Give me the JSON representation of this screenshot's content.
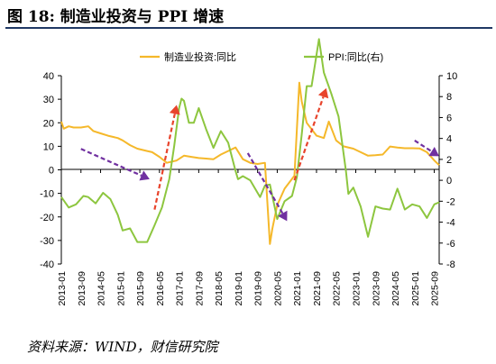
{
  "figure": {
    "title": "图 18:  制造业投资与 PPI 增速",
    "source": "资料来源：WIND，财信研究院"
  },
  "chart_data": {
    "type": "line",
    "title": "",
    "grid": false,
    "legend_position": "top",
    "y_left": {
      "min": -40,
      "max": 40,
      "step": 10,
      "ticks": [
        "40",
        "30",
        "20",
        "10",
        "0",
        "-10",
        "-20",
        "-30",
        "-40"
      ]
    },
    "y_right": {
      "min": -8,
      "max": 10,
      "step": 2,
      "ticks": [
        "10",
        "8",
        "6",
        "4",
        "2",
        "0",
        "-2",
        "-4",
        "-6",
        "-8"
      ]
    },
    "x_ticks": [
      "2013-01",
      "2013-09",
      "2014-05",
      "2015-01",
      "2015-09",
      "2016-05",
      "2017-01",
      "2017-09",
      "2018-05",
      "2019-01",
      "2019-09",
      "2020-05",
      "2021-01",
      "2021-09",
      "2022-05",
      "2023-01",
      "2023-09",
      "2024-05",
      "2025-01",
      "2025-09"
    ],
    "series": [
      {
        "name": "制造业投资:同比",
        "axis": "left",
        "color": "#f5b82a",
        "points": [
          [
            "2013-01",
            20.5
          ],
          [
            "2013-02",
            17.5
          ],
          [
            "2013-04",
            18.5
          ],
          [
            "2013-06",
            18.0
          ],
          [
            "2013-09",
            18.0
          ],
          [
            "2013-12",
            18.5
          ],
          [
            "2014-02",
            16.5
          ],
          [
            "2014-05",
            15.5
          ],
          [
            "2014-08",
            14.5
          ],
          [
            "2014-12",
            13.5
          ],
          [
            "2015-02",
            12.5
          ],
          [
            "2015-05",
            10.5
          ],
          [
            "2015-08",
            9.0
          ],
          [
            "2015-12",
            8.0
          ],
          [
            "2016-02",
            7.5
          ],
          [
            "2016-05",
            5.5
          ],
          [
            "2016-08",
            3.0
          ],
          [
            "2016-12",
            4.0
          ],
          [
            "2017-03",
            6.0
          ],
          [
            "2017-06",
            5.5
          ],
          [
            "2017-09",
            5.0
          ],
          [
            "2017-12",
            4.8
          ],
          [
            "2018-03",
            4.5
          ],
          [
            "2018-06",
            6.5
          ],
          [
            "2018-09",
            8.0
          ],
          [
            "2018-12",
            9.5
          ],
          [
            "2019-03",
            4.5
          ],
          [
            "2019-06",
            3.0
          ],
          [
            "2019-09",
            2.5
          ],
          [
            "2019-12",
            3.0
          ],
          [
            "2020-02",
            -31.5
          ],
          [
            "2020-03",
            -25.0
          ],
          [
            "2020-05",
            -15.0
          ],
          [
            "2020-08",
            -8.0
          ],
          [
            "2020-12",
            -2.5
          ],
          [
            "2021-02",
            37.0
          ],
          [
            "2021-03",
            29.0
          ],
          [
            "2021-05",
            20.0
          ],
          [
            "2021-09",
            14.5
          ],
          [
            "2021-12",
            13.5
          ],
          [
            "2022-02",
            20.5
          ],
          [
            "2022-05",
            12.5
          ],
          [
            "2022-08",
            10.0
          ],
          [
            "2022-12",
            9.0
          ],
          [
            "2023-03",
            7.5
          ],
          [
            "2023-06",
            6.0
          ],
          [
            "2023-09",
            6.2
          ],
          [
            "2023-12",
            6.5
          ],
          [
            "2024-03",
            9.9
          ],
          [
            "2024-06",
            9.5
          ],
          [
            "2024-09",
            9.2
          ],
          [
            "2024-12",
            9.2
          ],
          [
            "2025-03",
            9.1
          ],
          [
            "2025-06",
            7.5
          ],
          [
            "2025-09",
            4.0
          ],
          [
            "2025-11",
            2.0
          ]
        ]
      },
      {
        "name": "PPI:同比(右)",
        "axis": "right",
        "color": "#8dc63f",
        "points": [
          [
            "2013-01",
            -1.6
          ],
          [
            "2013-04",
            -2.6
          ],
          [
            "2013-07",
            -2.3
          ],
          [
            "2013-10",
            -1.5
          ],
          [
            "2013-12",
            -1.6
          ],
          [
            "2014-03",
            -2.2
          ],
          [
            "2014-06",
            -1.2
          ],
          [
            "2014-09",
            -1.8
          ],
          [
            "2014-12",
            -3.3
          ],
          [
            "2015-02",
            -4.8
          ],
          [
            "2015-05",
            -4.6
          ],
          [
            "2015-08",
            -5.9
          ],
          [
            "2015-12",
            -5.9
          ],
          [
            "2016-03",
            -4.3
          ],
          [
            "2016-06",
            -2.6
          ],
          [
            "2016-09",
            0.1
          ],
          [
            "2016-11",
            3.3
          ],
          [
            "2017-01",
            6.9
          ],
          [
            "2017-02",
            7.8
          ],
          [
            "2017-03",
            7.6
          ],
          [
            "2017-05",
            5.5
          ],
          [
            "2017-07",
            5.5
          ],
          [
            "2017-09",
            6.9
          ],
          [
            "2017-12",
            4.9
          ],
          [
            "2018-03",
            3.1
          ],
          [
            "2018-06",
            4.7
          ],
          [
            "2018-09",
            3.6
          ],
          [
            "2018-12",
            0.9
          ],
          [
            "2019-01",
            0.1
          ],
          [
            "2019-03",
            0.4
          ],
          [
            "2019-06",
            0.0
          ],
          [
            "2019-08",
            -0.8
          ],
          [
            "2019-10",
            -1.6
          ],
          [
            "2019-12",
            -0.5
          ],
          [
            "2020-02",
            -0.4
          ],
          [
            "2020-05",
            -3.7
          ],
          [
            "2020-08",
            -2.0
          ],
          [
            "2020-11",
            -1.5
          ],
          [
            "2021-01",
            0.3
          ],
          [
            "2021-03",
            4.4
          ],
          [
            "2021-05",
            9.0
          ],
          [
            "2021-07",
            9.0
          ],
          [
            "2021-10",
            13.5
          ],
          [
            "2021-12",
            10.3
          ],
          [
            "2022-03",
            8.3
          ],
          [
            "2022-06",
            6.1
          ],
          [
            "2022-09",
            0.9
          ],
          [
            "2022-10",
            -1.3
          ],
          [
            "2022-12",
            -0.7
          ],
          [
            "2023-03",
            -2.5
          ],
          [
            "2023-06",
            -5.4
          ],
          [
            "2023-09",
            -2.5
          ],
          [
            "2023-12",
            -2.7
          ],
          [
            "2024-03",
            -2.8
          ],
          [
            "2024-06",
            -0.8
          ],
          [
            "2024-09",
            -2.8
          ],
          [
            "2024-12",
            -2.3
          ],
          [
            "2025-03",
            -2.5
          ],
          [
            "2025-06",
            -3.6
          ],
          [
            "2025-09",
            -2.3
          ],
          [
            "2025-11",
            -2.1
          ]
        ]
      }
    ],
    "annotations": [
      {
        "type": "arrow",
        "color": "#7030a0",
        "from": [
          "2013-09",
          3.0
        ],
        "to": [
          "2016-01",
          0.1
        ],
        "axis": "right"
      },
      {
        "type": "arrow",
        "color": "#e8442c",
        "from": [
          "2016-03",
          -2.8
        ],
        "to": [
          "2016-12",
          7.2
        ],
        "axis": "right"
      },
      {
        "type": "arrow",
        "color": "#7030a0",
        "from": [
          "2019-05",
          2.6
        ],
        "to": [
          "2020-09",
          -3.9
        ],
        "axis": "right"
      },
      {
        "type": "arrow",
        "color": "#e8442c",
        "from": [
          "2020-12",
          0.0
        ],
        "to": [
          "2022-01",
          8.8
        ],
        "axis": "right"
      },
      {
        "type": "arrow",
        "color": "#7030a0",
        "from": [
          "2025-01",
          3.8
        ],
        "to": [
          "2025-11",
          2.3
        ],
        "axis": "right"
      }
    ]
  }
}
